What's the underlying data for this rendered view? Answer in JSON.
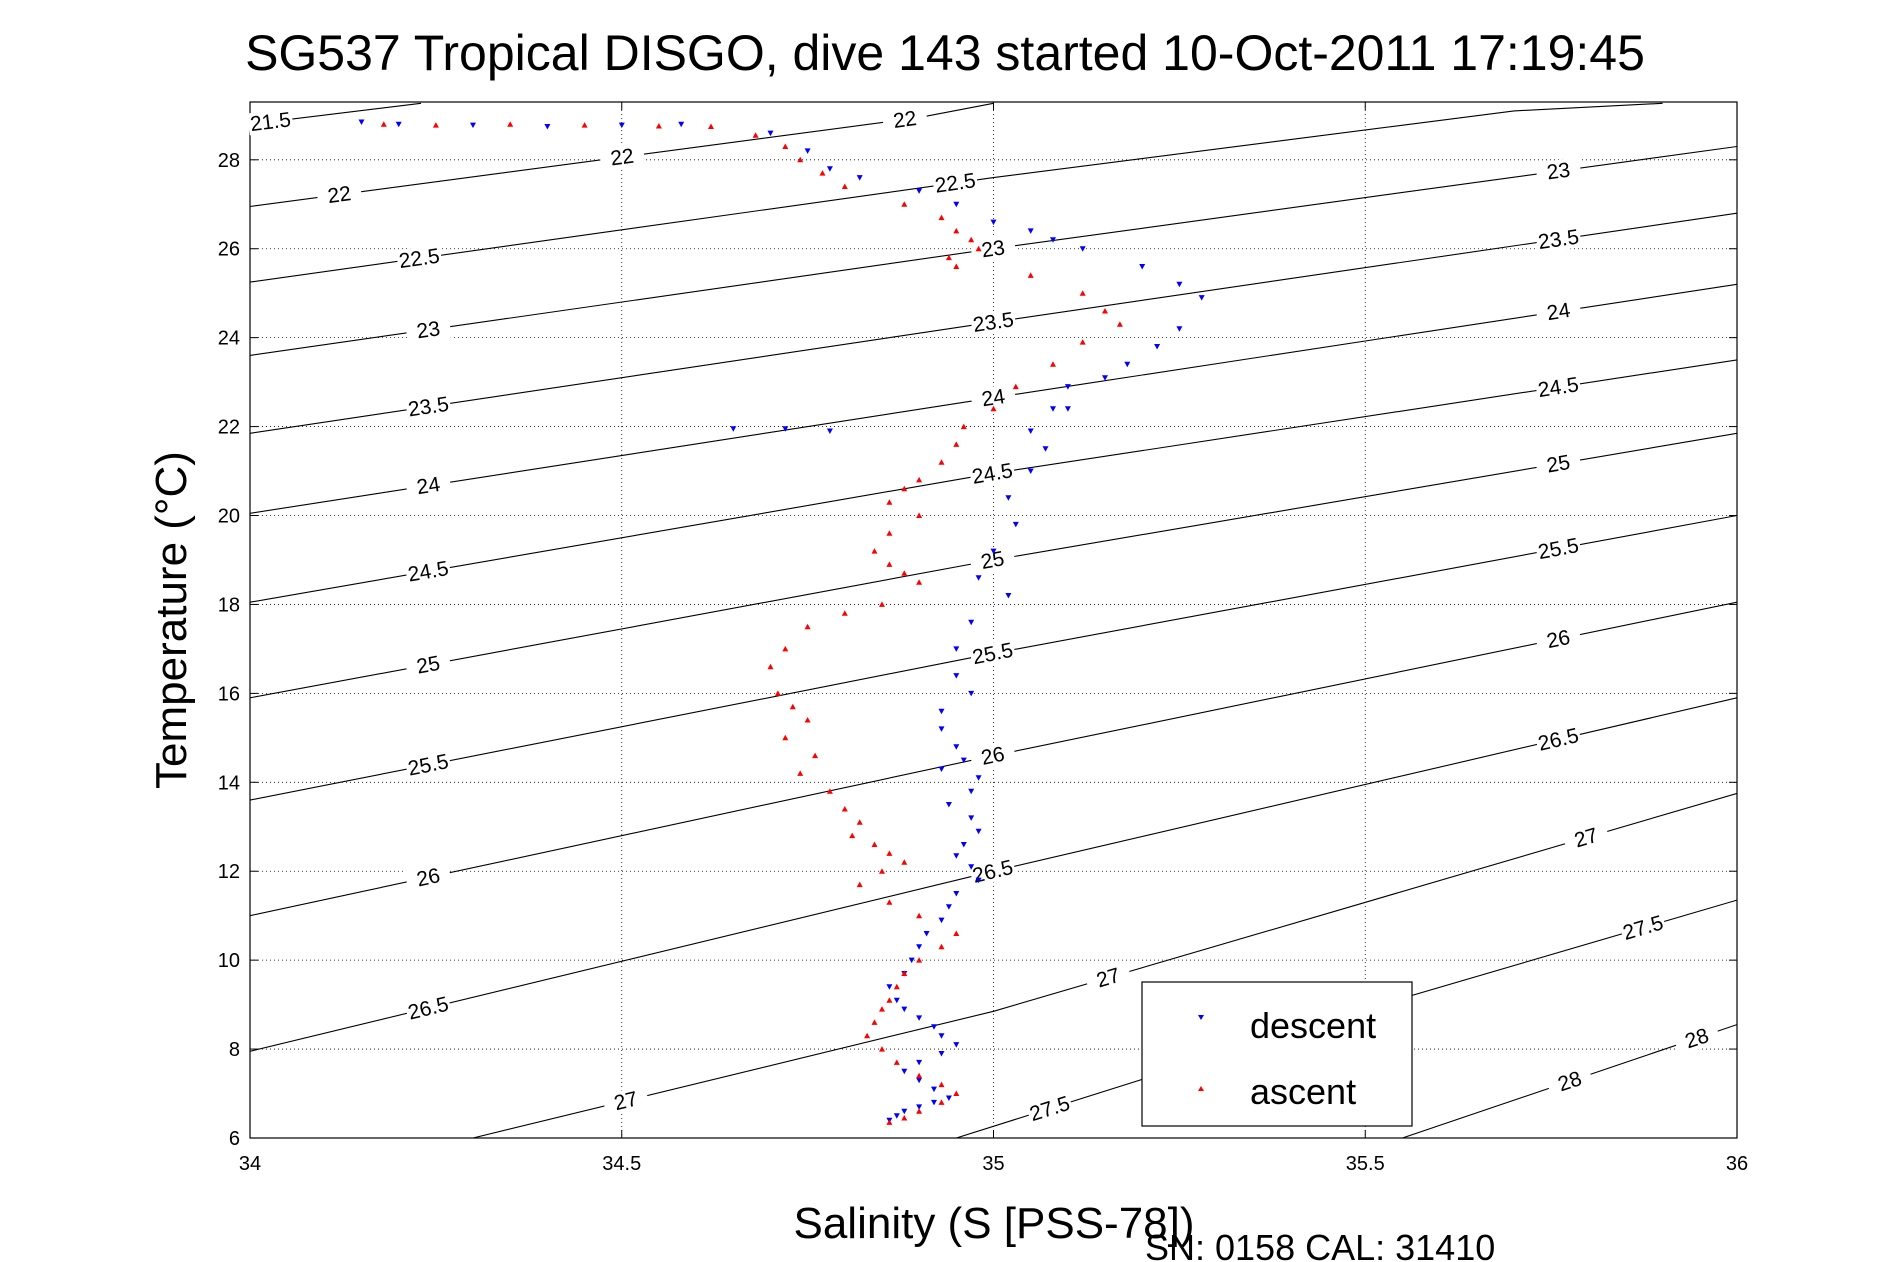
{
  "chart_data": {
    "type": "scatter",
    "title": "SG537 Tropical DISGO, dive 143 started 10-Oct-2011 17:19:45",
    "xlabel": "Salinity (S [PSS-78])",
    "ylabel": "Temperature (°C)",
    "xlim": [
      34,
      36
    ],
    "ylim": [
      6,
      29.3
    ],
    "x_ticks": [
      "34",
      "34.5",
      "35",
      "35.5",
      "36"
    ],
    "y_ticks": [
      "6",
      "8",
      "10",
      "12",
      "14",
      "16",
      "18",
      "20",
      "22",
      "24",
      "26",
      "28"
    ],
    "grid": "dotted",
    "legend_position": "bottom-right",
    "footer": "SN: 0158  CAL: 31410",
    "density_contours": [
      {
        "label": "21.5",
        "points": [
          [
            34.0,
            28.8
          ],
          [
            34.23,
            29.27
          ]
        ]
      },
      {
        "label": "22",
        "points": [
          [
            34.0,
            26.95
          ],
          [
            34.9,
            28.95
          ],
          [
            35.0,
            29.27
          ]
        ]
      },
      {
        "label": "22.5",
        "points": [
          [
            34.0,
            25.25
          ],
          [
            35.0,
            27.6
          ],
          [
            35.7,
            29.1
          ],
          [
            35.9,
            29.27
          ]
        ]
      },
      {
        "label": "23",
        "points": [
          [
            34.0,
            23.6
          ],
          [
            35.0,
            26.0
          ],
          [
            36.0,
            28.3
          ]
        ]
      },
      {
        "label": "23.5",
        "points": [
          [
            34.0,
            21.85
          ],
          [
            35.0,
            24.35
          ],
          [
            36.0,
            26.8
          ]
        ]
      },
      {
        "label": "24",
        "points": [
          [
            34.0,
            20.05
          ],
          [
            35.0,
            22.65
          ],
          [
            36.0,
            25.2
          ]
        ]
      },
      {
        "label": "24.5",
        "points": [
          [
            34.0,
            18.05
          ],
          [
            35.0,
            20.95
          ],
          [
            36.0,
            23.5
          ]
        ]
      },
      {
        "label": "25",
        "points": [
          [
            34.0,
            15.9
          ],
          [
            35.0,
            19.0
          ],
          [
            36.0,
            21.85
          ]
        ]
      },
      {
        "label": "25.5",
        "points": [
          [
            34.0,
            13.6
          ],
          [
            35.0,
            16.9
          ],
          [
            36.0,
            20.0
          ]
        ]
      },
      {
        "label": "26",
        "points": [
          [
            34.0,
            11.0
          ],
          [
            35.0,
            14.6
          ],
          [
            36.0,
            18.05
          ]
        ]
      },
      {
        "label": "26.5",
        "points": [
          [
            34.0,
            7.95
          ],
          [
            35.0,
            12.0
          ],
          [
            36.0,
            15.9
          ]
        ]
      },
      {
        "label": "27",
        "points": [
          [
            34.3,
            6.0
          ],
          [
            35.0,
            8.85
          ],
          [
            36.0,
            13.75
          ]
        ]
      },
      {
        "label": "27.5",
        "points": [
          [
            34.95,
            6.0
          ],
          [
            35.5,
            8.9
          ],
          [
            36.0,
            11.35
          ]
        ]
      },
      {
        "label": "28",
        "points": [
          [
            35.55,
            6.0
          ],
          [
            36.0,
            8.55
          ]
        ]
      }
    ],
    "series": [
      {
        "name": "descent",
        "color": "#0000ff",
        "marker": "triangle-down",
        "x": [
          34.15,
          34.2,
          34.3,
          34.4,
          34.5,
          34.58,
          34.7,
          34.75,
          34.78,
          34.82,
          34.9,
          34.95,
          35.0,
          35.05,
          35.08,
          35.12,
          35.2,
          35.25,
          35.28,
          35.25,
          35.22,
          35.18,
          35.15,
          35.1,
          35.08,
          35.05,
          34.65,
          34.78,
          34.72,
          35.1,
          35.07,
          35.05,
          35.02,
          35.03,
          35.0,
          34.98,
          35.02,
          34.97,
          34.95,
          34.95,
          34.97,
          34.93,
          34.93,
          34.95,
          34.93,
          34.96,
          34.98,
          34.97,
          34.94,
          34.97,
          34.98,
          34.96,
          34.95,
          34.97,
          34.98,
          34.95,
          34.94,
          34.93,
          34.91,
          34.9,
          34.89,
          34.88,
          34.86,
          34.87,
          34.88,
          34.9,
          34.92,
          34.93,
          34.95,
          34.93,
          34.9,
          34.88,
          34.9,
          34.92,
          34.94,
          34.92,
          34.9,
          34.88,
          34.87,
          34.86
        ],
        "y": [
          28.85,
          28.8,
          28.78,
          28.75,
          28.78,
          28.8,
          28.6,
          28.2,
          27.8,
          27.6,
          27.3,
          27.0,
          26.6,
          26.4,
          26.2,
          26.0,
          25.6,
          25.2,
          24.9,
          24.2,
          23.8,
          23.4,
          23.1,
          22.9,
          22.4,
          21.9,
          21.95,
          21.9,
          21.95,
          22.4,
          21.5,
          21.0,
          20.4,
          19.8,
          19.2,
          18.6,
          18.2,
          17.6,
          17.0,
          16.4,
          16.0,
          15.6,
          15.2,
          14.8,
          14.3,
          14.5,
          14.1,
          13.8,
          13.5,
          13.2,
          12.9,
          12.6,
          12.35,
          12.1,
          11.8,
          11.5,
          11.2,
          10.9,
          10.6,
          10.3,
          10.0,
          9.7,
          9.4,
          9.1,
          8.9,
          8.7,
          8.5,
          8.3,
          8.1,
          7.9,
          7.7,
          7.5,
          7.3,
          7.1,
          6.9,
          6.8,
          6.7,
          6.6,
          6.5,
          6.4
        ]
      },
      {
        "name": "ascent",
        "color": "#ff0000",
        "marker": "triangle-up",
        "x": [
          34.18,
          34.25,
          34.35,
          34.45,
          34.55,
          34.62,
          34.68,
          34.72,
          34.74,
          34.77,
          34.8,
          34.88,
          34.93,
          34.95,
          34.97,
          34.98,
          34.95,
          34.94,
          35.05,
          35.12,
          35.15,
          35.17,
          35.12,
          35.08,
          35.03,
          35.0,
          34.96,
          34.95,
          34.93,
          34.9,
          34.88,
          34.86,
          34.9,
          34.86,
          34.84,
          34.86,
          34.88,
          34.9,
          34.85,
          34.8,
          34.75,
          34.72,
          34.7,
          34.71,
          34.73,
          34.75,
          34.72,
          34.76,
          34.74,
          34.78,
          34.8,
          34.82,
          34.81,
          34.84,
          34.86,
          34.88,
          34.85,
          34.82,
          34.86,
          34.9,
          34.95,
          34.93,
          34.9,
          34.88,
          34.87,
          34.86,
          34.85,
          34.84,
          34.83,
          34.85,
          34.87,
          34.9,
          34.93,
          34.95,
          34.93,
          34.9,
          34.88,
          34.86
        ],
        "y": [
          28.8,
          28.78,
          28.8,
          28.78,
          28.76,
          28.75,
          28.55,
          28.3,
          28.0,
          27.7,
          27.4,
          27.0,
          26.7,
          26.4,
          26.2,
          26.0,
          25.6,
          25.8,
          25.4,
          25.0,
          24.6,
          24.3,
          23.9,
          23.4,
          22.9,
          22.4,
          22.0,
          21.6,
          21.2,
          20.8,
          20.6,
          20.3,
          20.0,
          19.6,
          19.2,
          18.9,
          18.7,
          18.5,
          18.0,
          17.8,
          17.5,
          17.0,
          16.6,
          16.0,
          15.7,
          15.4,
          15.0,
          14.6,
          14.2,
          13.8,
          13.4,
          13.1,
          12.8,
          12.6,
          12.4,
          12.2,
          12.0,
          11.7,
          11.3,
          11.0,
          10.6,
          10.3,
          10.0,
          9.7,
          9.4,
          9.1,
          8.9,
          8.6,
          8.3,
          8.0,
          7.7,
          7.4,
          7.2,
          7.0,
          6.8,
          6.6,
          6.45,
          6.35
        ]
      }
    ]
  }
}
